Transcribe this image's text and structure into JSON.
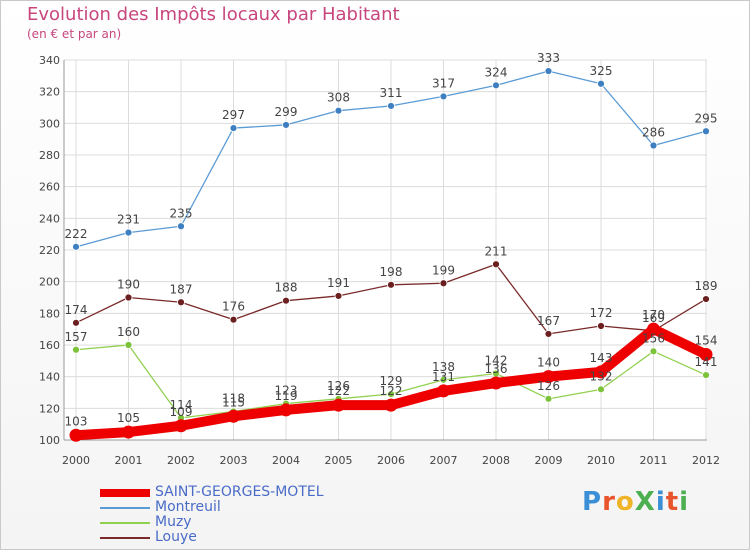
{
  "header": {
    "title": "Evolution des Impôts locaux par Habitant",
    "subtitle": "(en € et par an)"
  },
  "logo": {
    "text": "ProXiti",
    "colors": [
      "#3a8fd6",
      "#e8542c",
      "#f0b429",
      "#4caf50",
      "#3a8fd6",
      "#e8542c",
      "#4caf50"
    ]
  },
  "chart_data": {
    "type": "line",
    "x": [
      "2000",
      "2001",
      "2002",
      "2003",
      "2004",
      "2005",
      "2006",
      "2007",
      "2008",
      "2009",
      "2010",
      "2011",
      "2012"
    ],
    "ylim": [
      100,
      340
    ],
    "yticks": [
      "100",
      "120",
      "140",
      "160",
      "180",
      "200",
      "220",
      "240",
      "260",
      "280",
      "300",
      "320",
      "340"
    ],
    "grid": true,
    "legend_position": "bottom-left",
    "series": [
      {
        "name": "SAINT-GEORGES-MOTEL",
        "color": "#ee0000",
        "marker_color": "#ee0000",
        "values": [
          103,
          105,
          109,
          115,
          119,
          122,
          122,
          131,
          136,
          140,
          143,
          170,
          154
        ],
        "labels": [
          "103",
          "105",
          "109",
          "115",
          "119",
          "122",
          "122",
          "131",
          "136",
          "140",
          "143",
          "170",
          "154"
        ]
      },
      {
        "name": "Montreuil",
        "color": "#5b9bd5",
        "marker_color": "#3d7fc1",
        "values": [
          222,
          231,
          235,
          297,
          299,
          308,
          311,
          317,
          324,
          333,
          325,
          286,
          295
        ],
        "labels": [
          "222",
          "231",
          "235",
          "297",
          "299",
          "308",
          "311",
          "317",
          "324",
          "333",
          "325",
          "286",
          "295"
        ]
      },
      {
        "name": "Muzy",
        "color": "#92d050",
        "marker_color": "#7cc23a",
        "values": [
          157,
          160,
          114,
          118,
          123,
          126,
          129,
          138,
          142,
          126,
          132,
          156,
          141
        ],
        "labels": [
          "157",
          "160",
          "114",
          "118",
          "123",
          "126",
          "129",
          "138",
          "142",
          "126",
          "132",
          "156",
          "141"
        ]
      },
      {
        "name": "Louye",
        "color": "#7a2a2a",
        "marker_color": "#6b1f1f",
        "values": [
          174,
          190,
          187,
          176,
          188,
          191,
          198,
          199,
          211,
          167,
          172,
          169,
          189
        ],
        "labels": [
          "174",
          "190",
          "187",
          "176",
          "188",
          "191",
          "198",
          "199",
          "211",
          "167",
          "172",
          "169",
          "189"
        ]
      }
    ]
  }
}
